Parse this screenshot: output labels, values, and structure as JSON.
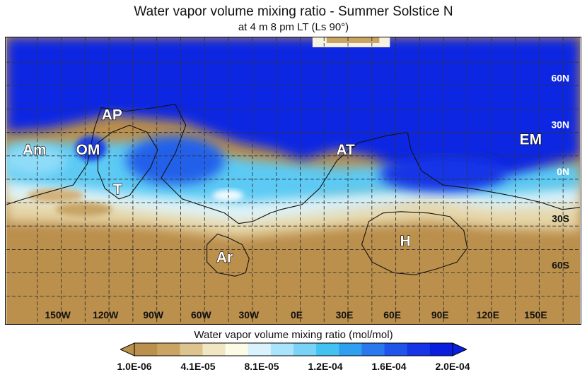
{
  "title": "Water vapor volume mixing ratio - Summer Solstice N",
  "subtitle": "at 4 m 8 pm LT (Ls 90°)",
  "map": {
    "lon_labels": [
      "150W",
      "120W",
      "90W",
      "60W",
      "30W",
      "0E",
      "30E",
      "60E",
      "90E",
      "120E",
      "150E"
    ],
    "lat_labels": [
      "60N",
      "30N",
      "0N",
      "30S",
      "60S"
    ],
    "regions": [
      {
        "id": "AP",
        "label": "AP"
      },
      {
        "id": "Am",
        "label": "Am"
      },
      {
        "id": "OM",
        "label": "OM"
      },
      {
        "id": "T",
        "label": "T"
      },
      {
        "id": "Ar",
        "label": "Ar"
      },
      {
        "id": "AT",
        "label": "AT"
      },
      {
        "id": "EM",
        "label": "EM"
      },
      {
        "id": "H",
        "label": "H"
      }
    ]
  },
  "colorbar": {
    "title": "Water vapor volume mixing ratio (mol/mol)",
    "tick_labels": [
      "1.0E-06",
      "4.1E-05",
      "8.1E-05",
      "1.2E-04",
      "1.6E-04",
      "2.0E-04"
    ],
    "colors": [
      "#bb8f4c",
      "#c9a463",
      "#ddc38e",
      "#f1e6c4",
      "#fbfbe6",
      "#d9f2fb",
      "#a9e4fa",
      "#78d3f7",
      "#43c2f2",
      "#2f9ff0",
      "#2a78ee",
      "#1f54ea",
      "#1535e6",
      "#0a1ee0"
    ],
    "extend_low_color": "#bb8f4c",
    "extend_high_color": "#0a1ee0"
  }
}
